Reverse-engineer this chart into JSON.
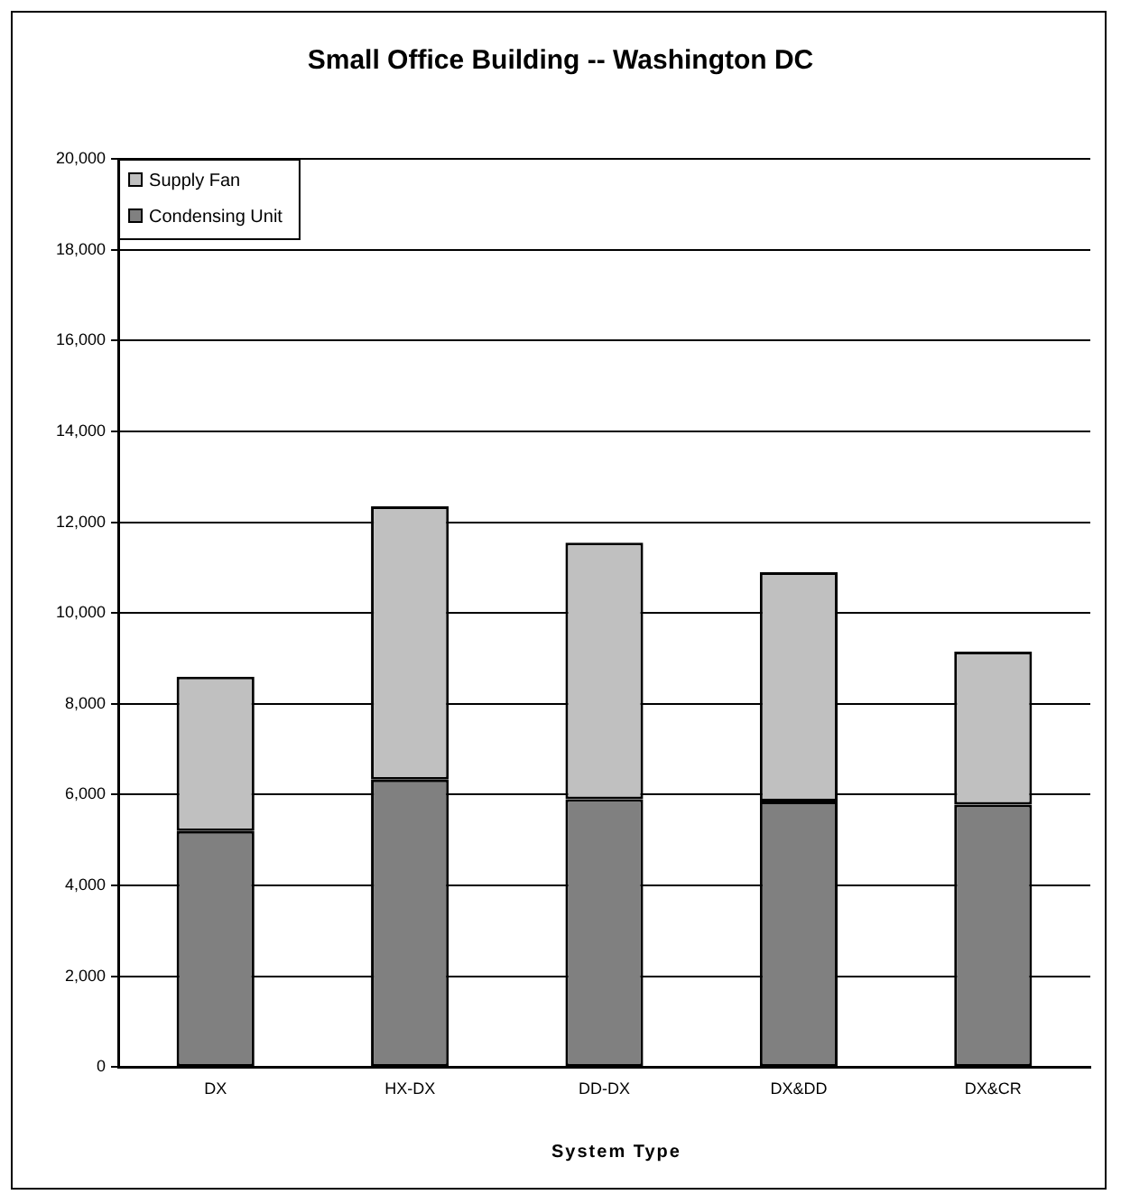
{
  "chart_data": {
    "type": "bar",
    "title": "Small Office Building -- Washington DC",
    "xlabel": "System Type",
    "categories": [
      "DX",
      "HX-DX",
      "DD-DX",
      "DX&DD",
      "DX&CR"
    ],
    "series": [
      {
        "name": "Condensing Unit",
        "color": "#808080",
        "values": [
          5200,
          6330,
          5900,
          5850,
          5780
        ]
      },
      {
        "name": "Supply Fan",
        "color": "#c0c0c0",
        "values": [
          3400,
          6020,
          5650,
          5050,
          3370
        ]
      }
    ],
    "stacked": true,
    "ylim": [
      0,
      20000
    ],
    "yticks": [
      0,
      {
        "value": 2000,
        "label": "2,000"
      },
      {
        "value": 4000,
        "label": "4,000"
      },
      {
        "value": 6000,
        "label": "6,000"
      },
      {
        "value": 8000,
        "label": "8,000"
      },
      {
        "value": 10000,
        "label": "10,000"
      },
      {
        "value": 12000,
        "label": "12,000"
      },
      {
        "value": 14000,
        "label": "14,000"
      },
      {
        "value": 16000,
        "label": "16,000"
      },
      {
        "value": 18000,
        "label": "18,000"
      },
      {
        "value": 20000,
        "label": "20,000"
      }
    ],
    "grid": "y",
    "legend": "top left"
  }
}
